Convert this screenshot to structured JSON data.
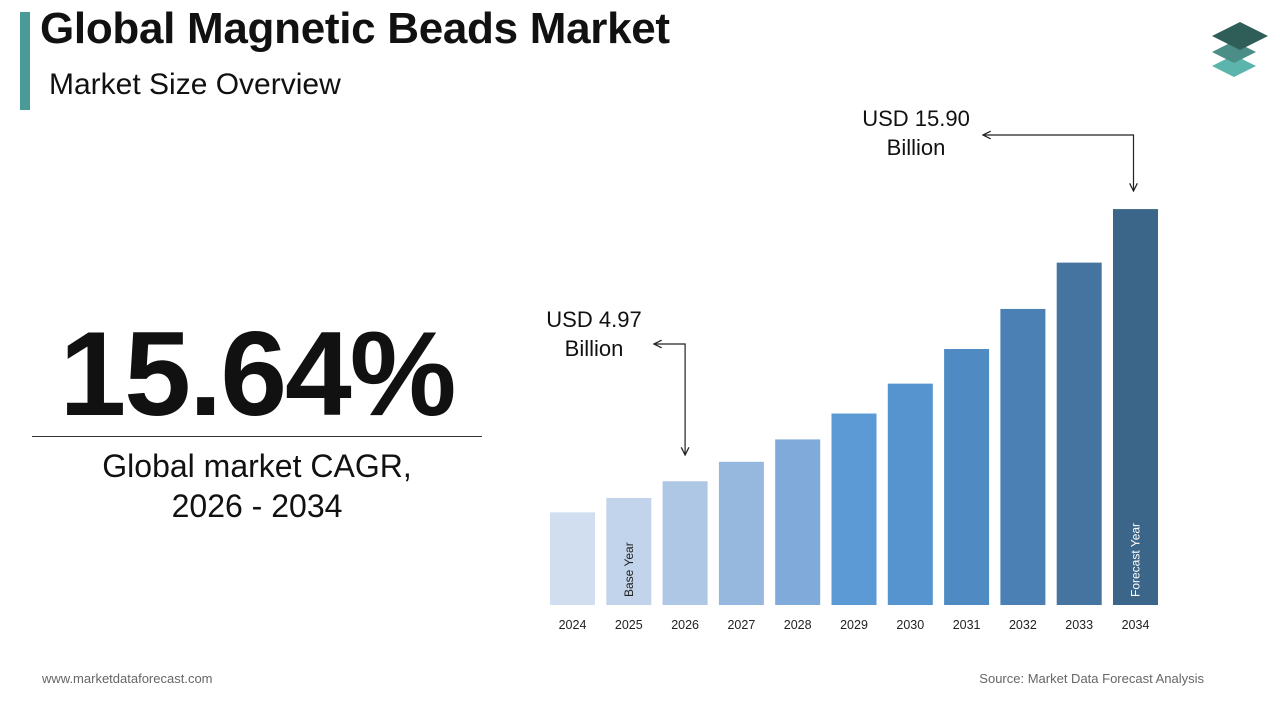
{
  "header": {
    "title": "Global Magnetic Beads Market",
    "subtitle": "Market Size Overview"
  },
  "cagr": {
    "value": "15.64%",
    "label_line1": "Global market CAGR,",
    "label_line2": "2026 - 2034"
  },
  "callouts": {
    "end_value": {
      "line1": "USD 15.90",
      "line2": "Billion"
    },
    "base_value": {
      "line1": "USD 4.97",
      "line2": "Billion"
    }
  },
  "chart_data": {
    "type": "bar",
    "categories": [
      "2024",
      "2025",
      "2026",
      "2027",
      "2028",
      "2029",
      "2030",
      "2031",
      "2032",
      "2033",
      "2034"
    ],
    "values": [
      3.72,
      4.3,
      4.97,
      5.75,
      6.65,
      7.69,
      8.89,
      10.28,
      11.89,
      13.75,
      15.9
    ],
    "in_bar_labels": [
      {
        "category": "2025",
        "text": "Base Year"
      },
      {
        "category": "2034",
        "text": "Forecast Year"
      }
    ],
    "colors": [
      "#d1deef",
      "#c2d4eb",
      "#aec7e5",
      "#97b8de",
      "#80aad9",
      "#5b9ad4",
      "#5594cf",
      "#4f8ac3",
      "#4b80b5",
      "#44749f",
      "#3b6589"
    ],
    "grid": false,
    "legend": "none",
    "xlabel": "",
    "ylabel": ""
  },
  "footer": {
    "url": "www.marketdataforecast.com",
    "source": "Source: Market Data Forecast Analysis"
  },
  "logo": {
    "icon": "stacked-layers-icon",
    "colors": [
      "#2f5e58",
      "#4a8e87",
      "#5bb5ad"
    ]
  }
}
